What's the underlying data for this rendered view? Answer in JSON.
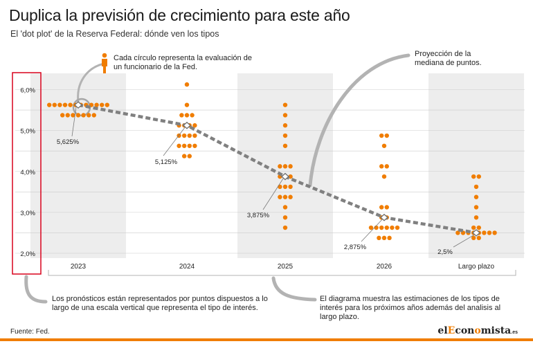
{
  "header": {
    "title": "Duplica la previsión de crecimiento para este año",
    "subtitle": "El 'dot plot' de la Reserva Federal: dónde ven los tipos"
  },
  "annotations": {
    "circle_note": "Cada círculo representa la evaluación de un funcionario de la Fed.",
    "median_note": "Proyección de la mediana de puntos.",
    "axis_note": "Los pronósticos están representados por puntos dispuestos a lo largo de una escala vertical que representa el tipo de interés.",
    "years_note": "El diagrama muestra las estimaciones de los tipos de interés para los próximos años además del analisis al largo plazo."
  },
  "footer": {
    "source": "Fuente: Fed.",
    "logo_pre": "el",
    "logo_accent": "E",
    "logo_mid": "con",
    "logo_accent2": "o",
    "logo_post": "mista",
    "logo_tld": ".es"
  },
  "colors": {
    "dot": "#f07d00",
    "median_line": "#808080",
    "band": "#ededed",
    "grid": "#cccccc",
    "frame": "#d9001b"
  },
  "chart_data": {
    "type": "scatter",
    "title": "Duplica la previsión de crecimiento para este año",
    "subtitle": "El 'dot plot' de la Reserva Federal: dónde ven los tipos",
    "xlabel": "",
    "ylabel": "",
    "categories": [
      "2023",
      "2024",
      "2025",
      "2026",
      "Largo plazo"
    ],
    "ylim": [
      1.875,
      6.125
    ],
    "yticks": [
      2.0,
      3.0,
      4.0,
      5.0,
      6.0
    ],
    "ytick_labels": [
      "2,0%",
      "3,0%",
      "4,0%",
      "5,0%",
      "6,0%"
    ],
    "grid": true,
    "dots": [
      [
        {
          "y": 5.625,
          "n": 12
        },
        {
          "y": 5.375,
          "n": 7
        }
      ],
      [
        {
          "y": 6.125,
          "n": 1
        },
        {
          "y": 5.625,
          "n": 1
        },
        {
          "y": 5.375,
          "n": 3
        },
        {
          "y": 5.125,
          "n": 4
        },
        {
          "y": 4.875,
          "n": 4
        },
        {
          "y": 4.625,
          "n": 4
        },
        {
          "y": 4.375,
          "n": 2
        }
      ],
      [
        {
          "y": 5.625,
          "n": 1
        },
        {
          "y": 5.375,
          "n": 1
        },
        {
          "y": 5.125,
          "n": 1
        },
        {
          "y": 4.875,
          "n": 1
        },
        {
          "y": 4.625,
          "n": 1
        },
        {
          "y": 4.125,
          "n": 3
        },
        {
          "y": 3.875,
          "n": 3
        },
        {
          "y": 3.625,
          "n": 3
        },
        {
          "y": 3.375,
          "n": 3
        },
        {
          "y": 3.125,
          "n": 1
        },
        {
          "y": 2.875,
          "n": 1
        },
        {
          "y": 2.625,
          "n": 1
        }
      ],
      [
        {
          "y": 4.875,
          "n": 2
        },
        {
          "y": 4.625,
          "n": 1
        },
        {
          "y": 4.125,
          "n": 2
        },
        {
          "y": 3.875,
          "n": 1
        },
        {
          "y": 3.125,
          "n": 2
        },
        {
          "y": 2.875,
          "n": 2
        },
        {
          "y": 2.625,
          "n": 6
        },
        {
          "y": 2.375,
          "n": 3
        }
      ],
      [
        {
          "y": 3.875,
          "n": 2
        },
        {
          "y": 3.625,
          "n": 1
        },
        {
          "y": 3.375,
          "n": 1
        },
        {
          "y": 3.125,
          "n": 1
        },
        {
          "y": 2.875,
          "n": 1
        },
        {
          "y": 2.625,
          "n": 2
        },
        {
          "y": 2.5,
          "n": 8
        },
        {
          "y": 2.375,
          "n": 2
        }
      ]
    ],
    "median": {
      "values": [
        5.625,
        5.125,
        3.875,
        2.875,
        2.5
      ],
      "labels": [
        "5,625%",
        "5,125%",
        "3,875%",
        "2,875%",
        "2,5%"
      ]
    }
  }
}
